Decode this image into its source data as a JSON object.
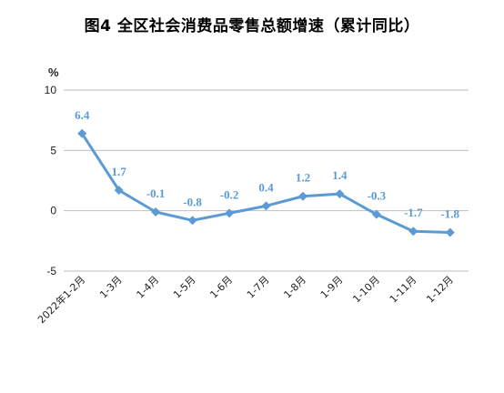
{
  "chart_data": {
    "type": "line",
    "title": "图4   全区社会消费品零售总额增速（累计同比）",
    "ylabel": "%",
    "xlabel": "",
    "ylim": [
      -5,
      10
    ],
    "yticks": [
      "10",
      "5",
      "0",
      "-5"
    ],
    "categories": [
      "2022年1-2月",
      "1-3月",
      "1-4月",
      "1-5月",
      "1-6月",
      "1-7月",
      "1-8月",
      "1-9月",
      "1-10月",
      "1-11月",
      "1-12月"
    ],
    "series": [
      {
        "values": [
          6.4,
          1.7,
          -0.1,
          -0.8,
          -0.2,
          0.4,
          1.2,
          1.4,
          -0.3,
          -1.7,
          -1.8
        ],
        "labels": [
          "6.4",
          "1.7",
          "-0.1",
          "-0.8",
          "-0.2",
          "0.4",
          "1.2",
          "1.4",
          "-0.3",
          "-1.7",
          "-1.8"
        ]
      }
    ],
    "grid": true,
    "legend": "none",
    "colors": {
      "line": "#5b9bd5",
      "label": "#5b9bd5",
      "grid": "#bfbfbf"
    }
  }
}
